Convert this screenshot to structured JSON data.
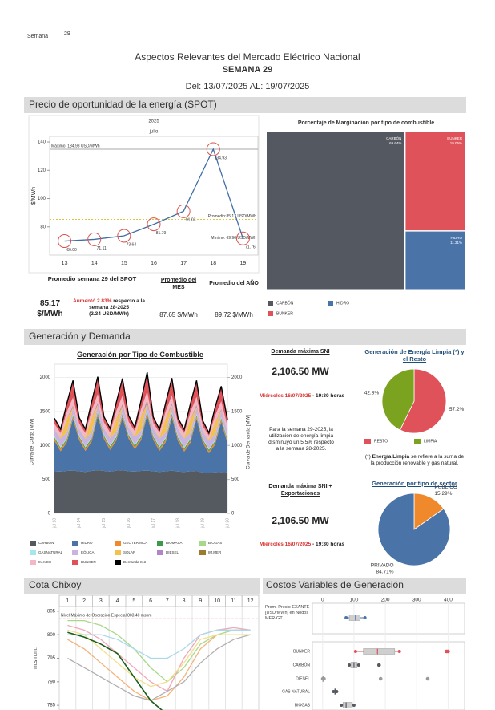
{
  "header": {
    "week_label": "Semana",
    "week_number": "29",
    "title": "Aspectos Relevantes del Mercado Eléctrico Nacional",
    "subtitle": "SEMANA 29",
    "period": "Del: 13/07/2025  AL: 19/07/2025"
  },
  "sections": {
    "spot": "Precio de oportunidad de la energía (SPOT)",
    "generation": "Generación y Demanda",
    "chixoy": "Cota Chixoy",
    "costs": "Costos Variables de Generación"
  },
  "spot_summary": {
    "week_title": "Promedio semana 29 del SPOT",
    "week_value": "85.17 $/MWh",
    "change_highlight": "Aumentó 2.83%",
    "change_text": "respecto a la semana 28-2025",
    "change_amount": "(2.34 USD/MWh)",
    "month_title": "Promedio del MES",
    "month_value": "87.65 $/MWh",
    "year_title": "Promedio del AÑO",
    "year_value": "89.72 $/MWh"
  },
  "demand": {
    "max_title": "Demanda máxima SNI",
    "max_value": "2,106.50 MW",
    "max_day": "Miércoles 16/07/2025",
    "max_time": "- 19:30 horas",
    "clean_note": "Para la semana 29-2025, la utilización de energía limpia disminuyó un 5.5% respecto a la semana 28-2025.",
    "export_title": "Demanda máxima SNI + Exportaciones",
    "export_value": "2,106.50 MW",
    "export_day": "Miércoles 16/07/2025",
    "export_time": "- 19:30 horas"
  },
  "clean_energy_note": {
    "prefix": "(*)",
    "bold": "Energía Limpia",
    "text": "se refiere a la suma de la producción renovable y gas natural."
  },
  "chart_data": [
    {
      "type": "line",
      "x_group_labels": [
        "2025",
        "julio"
      ],
      "ylabel": "$/MWh",
      "categories": [
        "13",
        "14",
        "15",
        "16",
        "17",
        "18",
        "19"
      ],
      "series": [
        {
          "color": "#3f6ea6",
          "values": [
            69.9,
            71.11,
            73.64,
            81.79,
            91.03,
            134.93,
            71.76
          ],
          "value_labels": [
            "69.90",
            "71.11",
            "73.64",
            "81.79",
            "91.03",
            "134.93",
            "71.76"
          ]
        }
      ],
      "markers": "circle",
      "marker_color": "#d9534f",
      "ylim": [
        60,
        144
      ],
      "yticks": [
        80,
        100,
        120,
        140
      ],
      "reference_lines": [
        {
          "label": "Máximo: 134.93 USD/MWh",
          "value": 134.93,
          "color": "#8c8c8c"
        },
        {
          "label": "Promedio:85.17 USD/MWh",
          "value": 85.17,
          "color": "#c8b400",
          "dash": "2,2"
        },
        {
          "label": "Mínimo: 69.90 USD/MWh",
          "value": 69.9,
          "color": "#8c8c8c"
        }
      ]
    },
    {
      "type": "treemap",
      "title": "Porcentaje de Marginación por tipo de combustible",
      "categories": [
        "CARBÓN",
        "BUNKER",
        "HIDRO"
      ],
      "values": [
        69.64,
        19.05,
        11.31
      ],
      "value_labels": [
        "69.64%",
        "19.05%",
        "11.31%"
      ],
      "colors": [
        "#545860",
        "#e0525a",
        "#4a74a8"
      ],
      "legend": "bottom"
    },
    {
      "type": "stacked_area",
      "title": "Generación por Tipo de Combustible",
      "ylabel": "Curva de Carga [MW]",
      "y2label": "Curva de Demanda [MW]",
      "categories": [
        "jul 13",
        null,
        null,
        null,
        "jul 14",
        null,
        null,
        null,
        "jul 15",
        null,
        null,
        null,
        "jul 16",
        null,
        null,
        null,
        "jul 17",
        null,
        null,
        null,
        "jul 18",
        null,
        null,
        null,
        "jul 19",
        null,
        null,
        null,
        "jul 20"
      ],
      "ylim": [
        0,
        2100
      ],
      "yticks": [
        0,
        500,
        1000,
        1500,
        2000
      ],
      "y2lim": [
        0,
        2100
      ],
      "y2ticks": [
        0,
        500,
        1000,
        1500,
        2000
      ],
      "grid": true,
      "series": [
        {
          "name": "CARBÓN",
          "color": "#555a61",
          "values": [
            620,
            615,
            625,
            630,
            620,
            610,
            625,
            635,
            625,
            615,
            630,
            635,
            620,
            615,
            625,
            630,
            620,
            610,
            620,
            630,
            615,
            610,
            620,
            625,
            600,
            595,
            605,
            610,
            605
          ]
        },
        {
          "name": "HIDRO",
          "color": "#4a74a8",
          "values": [
            450,
            300,
            420,
            760,
            460,
            310,
            430,
            800,
            470,
            320,
            440,
            780,
            480,
            330,
            450,
            820,
            460,
            310,
            430,
            790,
            450,
            300,
            420,
            770,
            440,
            290,
            410,
            740,
            430
          ]
        },
        {
          "name": "GEOTÉRMICA",
          "color": "#f0892b",
          "values": [
            30,
            30,
            30,
            30,
            30,
            30,
            30,
            30,
            30,
            30,
            30,
            30,
            30,
            30,
            30,
            30,
            30,
            30,
            30,
            30,
            30,
            30,
            30,
            30,
            30,
            30,
            30,
            30,
            30
          ]
        },
        {
          "name": "BIOMASA",
          "color": "#3a9a47",
          "values": [
            20,
            20,
            20,
            20,
            20,
            20,
            20,
            20,
            20,
            20,
            20,
            20,
            20,
            20,
            20,
            20,
            20,
            20,
            20,
            20,
            20,
            20,
            20,
            20,
            20,
            20,
            20,
            20,
            20
          ]
        },
        {
          "name": "BIOGAS",
          "color": "#a6d98c",
          "values": [
            5,
            5,
            5,
            5,
            5,
            5,
            5,
            5,
            5,
            5,
            5,
            5,
            5,
            5,
            5,
            5,
            5,
            5,
            5,
            5,
            5,
            5,
            5,
            5,
            5,
            5,
            5,
            5,
            5
          ]
        },
        {
          "name": "GASNATURAL",
          "color": "#a8e6ef",
          "values": [
            10,
            10,
            10,
            10,
            10,
            10,
            10,
            10,
            10,
            10,
            10,
            10,
            10,
            10,
            10,
            10,
            10,
            10,
            10,
            10,
            10,
            10,
            10,
            10,
            10,
            10,
            10,
            10,
            10
          ]
        },
        {
          "name": "EÓLICA",
          "color": "#c9b3e0",
          "values": [
            100,
            120,
            80,
            90,
            95,
            115,
            75,
            85,
            90,
            110,
            70,
            80,
            95,
            115,
            75,
            90,
            100,
            120,
            80,
            95,
            105,
            125,
            85,
            95,
            100,
            120,
            80,
            90,
            100
          ]
        },
        {
          "name": "SOLAR",
          "color": "#f2c14e",
          "values": [
            0,
            20,
            200,
            10,
            0,
            20,
            210,
            10,
            0,
            20,
            190,
            10,
            0,
            20,
            205,
            10,
            0,
            20,
            200,
            10,
            0,
            20,
            195,
            10,
            0,
            20,
            180,
            10,
            0
          ]
        },
        {
          "name": "DIESEL",
          "color": "#b085c9",
          "values": [
            5,
            0,
            5,
            20,
            5,
            0,
            5,
            25,
            5,
            0,
            5,
            20,
            5,
            0,
            5,
            30,
            5,
            0,
            5,
            20,
            5,
            0,
            5,
            20,
            5,
            0,
            5,
            15,
            5
          ]
        },
        {
          "name": "IM.MER",
          "color": "#9c7b2e",
          "values": [
            0,
            0,
            0,
            10,
            0,
            0,
            0,
            10,
            0,
            0,
            0,
            15,
            0,
            0,
            0,
            20,
            0,
            0,
            0,
            10,
            0,
            0,
            0,
            10,
            0,
            0,
            0,
            5,
            0
          ]
        },
        {
          "name": "IM.MEX",
          "color": "#f2b8c6",
          "values": [
            80,
            60,
            100,
            120,
            80,
            60,
            100,
            125,
            85,
            60,
            105,
            125,
            85,
            65,
            105,
            130,
            80,
            60,
            100,
            120,
            80,
            60,
            100,
            120,
            75,
            55,
            95,
            115,
            75
          ]
        },
        {
          "name": "BUNKER",
          "color": "#e0525a",
          "values": [
            80,
            60,
            120,
            250,
            85,
            60,
            125,
            260,
            85,
            65,
            125,
            255,
            90,
            65,
            130,
            270,
            85,
            60,
            125,
            255,
            80,
            60,
            120,
            245,
            75,
            55,
            110,
            230,
            75
          ]
        },
        {
          "name": "Demanda SNI",
          "color": "#000000",
          "axis": "y2",
          "values": [
            1400,
            1240,
            1615,
            1955,
            1410,
            1240,
            1635,
            2010,
            1425,
            1250,
            1630,
            1985,
            1440,
            1265,
            1655,
            2075,
            1415,
            1235,
            1625,
            1990,
            1400,
            1235,
            1610,
            1955,
            1365,
            1185,
            1560,
            1870,
            1380
          ]
        }
      ]
    },
    {
      "type": "pie",
      "title": "Generación de Energía Limpia (*) y el Resto",
      "categories": [
        "RESTO",
        "LIMPIA"
      ],
      "values": [
        57.2,
        42.8
      ],
      "value_labels": [
        "57.2%",
        "42.8%"
      ],
      "colors": [
        "#e0525a",
        "#7ba320"
      ],
      "legend": "bottom"
    },
    {
      "type": "pie",
      "title": "Generación por tipo de sector",
      "categories": [
        "PÚBLICO",
        "PRIVADO"
      ],
      "values": [
        15.29,
        84.71
      ],
      "value_labels": [
        "15.29%",
        "84.71%"
      ],
      "colors": [
        "#f0892b",
        "#4a74a8"
      ]
    },
    {
      "type": "line",
      "ylabel": "m.s.n.m.",
      "x_axis_position": "top",
      "categories": [
        "1",
        "2",
        "3",
        "4",
        "5",
        "6",
        "7",
        "8",
        "9",
        "10",
        "11",
        "12"
      ],
      "ylim": [
        784,
        806
      ],
      "yticks": [
        785,
        790,
        795,
        800,
        805
      ],
      "reference_lines": [
        {
          "label": "Nivel Máximo de Operación Especial 803.40 msnm",
          "value": 803.4,
          "color": "#d9534f",
          "dash": "3,2"
        }
      ],
      "series": [
        {
          "color": "#a8d98a",
          "values": [
            803,
            803,
            802,
            800,
            797,
            793,
            790,
            793,
            798,
            800,
            801,
            801
          ]
        },
        {
          "color": "#f4a6b8",
          "values": [
            802,
            801,
            799,
            796,
            793,
            790,
            788,
            795,
            800,
            801,
            801.5,
            801
          ]
        },
        {
          "color": "#f5b27a",
          "values": [
            799,
            797,
            794,
            791,
            788,
            786,
            787,
            791,
            797,
            800,
            800,
            800
          ]
        },
        {
          "color": "#f2e08a",
          "values": [
            801,
            800,
            797,
            794,
            791,
            789,
            790,
            794,
            799,
            800,
            800,
            800
          ]
        },
        {
          "color": "#a8d8ea",
          "values": [
            800,
            800,
            800,
            799,
            797,
            795,
            795,
            797,
            800,
            801,
            801,
            801
          ]
        },
        {
          "color": "#b0b0b0",
          "values": [
            795,
            793,
            791,
            789,
            787,
            786,
            788,
            790,
            794,
            797,
            799,
            800
          ]
        },
        {
          "color": "#1a5e1a",
          "values": [
            800.5,
            799.5,
            798,
            796,
            791,
            786,
            783,
            null,
            null,
            null,
            null,
            null
          ]
        }
      ]
    },
    {
      "type": "box",
      "categories": [
        "Prom. Precio EXANTE [USD/MWh] en Nodos MER-GT",
        "BUNKER",
        "CARBÓN",
        "DIESEL",
        "GAS NATURAL",
        "BIOGAS"
      ],
      "min": [
        75,
        105,
        85,
        0,
        35,
        60
      ],
      "q1": [
        85,
        130,
        90,
        0,
        38,
        65
      ],
      "median": [
        105,
        175,
        100,
        2,
        40,
        75
      ],
      "q3": [
        120,
        230,
        110,
        4,
        42,
        95
      ],
      "max": [
        135,
        245,
        115,
        5,
        45,
        100
      ],
      "outliers": [
        [],
        [
          395,
          400
        ],
        [
          180
        ],
        [
          185,
          335
        ],
        [],
        []
      ],
      "colors": [
        "#4a74a8",
        "#e0525a",
        "#555a61",
        "#9a9a9a",
        "#555a61",
        "#555a61"
      ],
      "xlim": [
        -30,
        450
      ],
      "xticks": [
        0,
        100,
        200,
        300,
        400
      ]
    }
  ]
}
